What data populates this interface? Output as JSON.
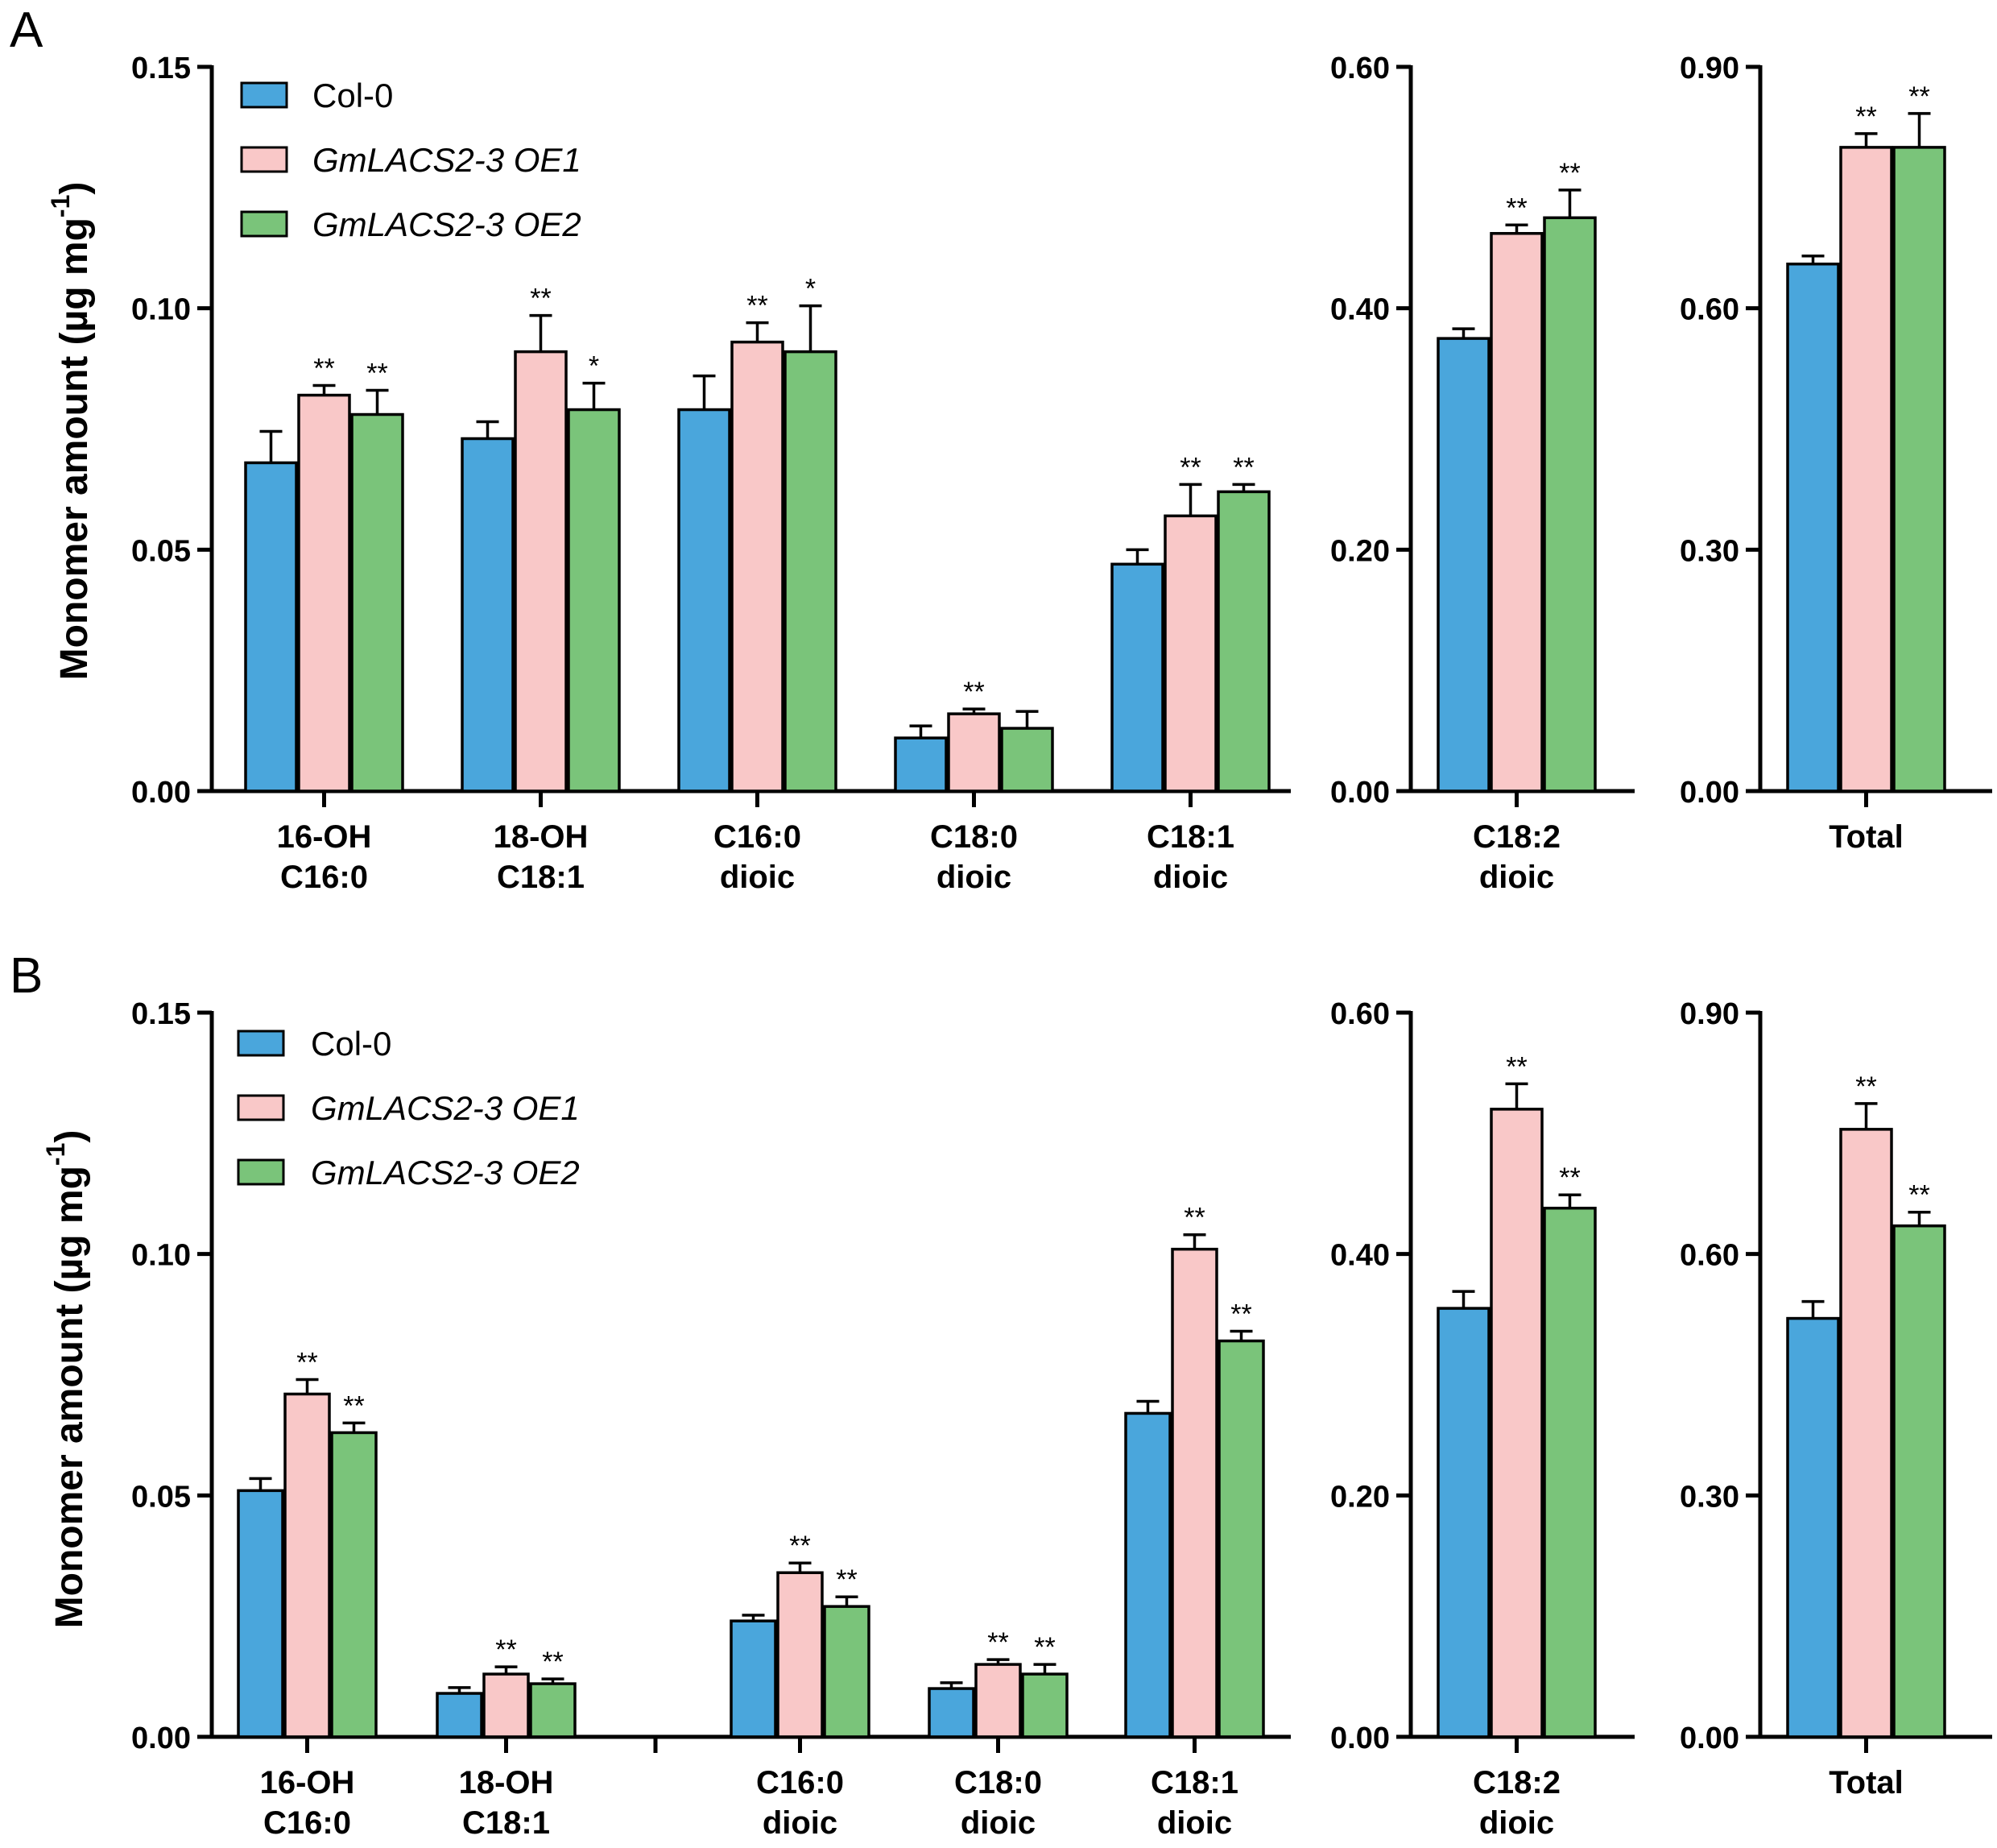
{
  "colors": {
    "col0": "#4aa6dc",
    "oe1": "#f9c8c8",
    "oe2": "#7ac47a",
    "axis": "#000000"
  },
  "chart_data": [
    {
      "panel": "A",
      "type": "bar",
      "ylabel": "Monomer amount (µg mg",
      "ylabel_sup": "-1",
      "ylabel_close": ")",
      "legend": [
        {
          "label": "Col-0",
          "italic": false
        },
        {
          "label": "GmLACS2-3 OE1",
          "italic": true
        },
        {
          "label": "GmLACS2-3 OE2",
          "italic": true
        }
      ],
      "subplots": [
        {
          "ylim": [
            0,
            0.15
          ],
          "ticks": [
            "0.00",
            "0.05",
            "0.10",
            "0.15"
          ],
          "categories": [
            [
              "16-OH",
              "C16:0"
            ],
            [
              "18-OH",
              "C18:1"
            ],
            [
              "C16:0",
              "dioic"
            ],
            [
              "C18:0",
              "dioic"
            ],
            [
              "C18:1",
              "dioic"
            ]
          ],
          "series": [
            {
              "name": "Col-0",
              "values": [
                0.068,
                0.073,
                0.079,
                0.011,
                0.047
              ],
              "errors": [
                0.0065,
                0.0035,
                0.007,
                0.0025,
                0.003
              ],
              "sig": [
                "",
                "",
                "",
                "",
                ""
              ]
            },
            {
              "name": "GmLACS2-3 OE1",
              "values": [
                0.082,
                0.091,
                0.093,
                0.016,
                0.057
              ],
              "errors": [
                0.002,
                0.0075,
                0.004,
                0.001,
                0.0065
              ],
              "sig": [
                "**",
                "**",
                "**",
                "**",
                "**"
              ]
            },
            {
              "name": "GmLACS2-3 OE2",
              "values": [
                0.078,
                0.079,
                0.091,
                0.013,
                0.062
              ],
              "errors": [
                0.005,
                0.0055,
                0.0095,
                0.0035,
                0.0015
              ],
              "sig": [
                "**",
                "*",
                "*",
                "",
                "**"
              ]
            }
          ]
        },
        {
          "ylim": [
            0,
            0.6
          ],
          "ticks": [
            "0.00",
            "0.20",
            "0.40",
            "0.60"
          ],
          "categories": [
            [
              "C18:2",
              "dioic"
            ]
          ],
          "series": [
            {
              "name": "Col-0",
              "values": [
                0.375
              ],
              "errors": [
                0.008
              ],
              "sig": [
                ""
              ]
            },
            {
              "name": "GmLACS2-3 OE1",
              "values": [
                0.462
              ],
              "errors": [
                0.007
              ],
              "sig": [
                "**"
              ]
            },
            {
              "name": "GmLACS2-3 OE2",
              "values": [
                0.475
              ],
              "errors": [
                0.023
              ],
              "sig": [
                "**"
              ]
            }
          ]
        },
        {
          "ylim": [
            0,
            0.9
          ],
          "ticks": [
            "0.00",
            "0.30",
            "0.60",
            "0.90"
          ],
          "categories": [
            [
              "Total"
            ]
          ],
          "series": [
            {
              "name": "Col-0",
              "values": [
                0.655
              ],
              "errors": [
                0.01
              ],
              "sig": [
                ""
              ]
            },
            {
              "name": "GmLACS2-3 OE1",
              "values": [
                0.8
              ],
              "errors": [
                0.017
              ],
              "sig": [
                "**"
              ]
            },
            {
              "name": "GmLACS2-3 OE2",
              "values": [
                0.8
              ],
              "errors": [
                0.042
              ],
              "sig": [
                "**"
              ]
            }
          ]
        }
      ]
    },
    {
      "panel": "B",
      "type": "bar",
      "ylabel": "Monomer amount (µg mg",
      "ylabel_sup": "-1",
      "ylabel_close": ")",
      "legend": [
        {
          "label": "Col-0",
          "italic": false
        },
        {
          "label": "GmLACS2-3 OE1",
          "italic": true
        },
        {
          "label": "GmLACS2-3 OE2",
          "italic": true
        }
      ],
      "subplots": [
        {
          "ylim": [
            0,
            0.15
          ],
          "ticks": [
            "0.00",
            "0.05",
            "0.10",
            "0.15"
          ],
          "categories": [
            [
              "16-OH",
              "C16:0"
            ],
            [
              "18-OH",
              "C18:1"
            ],
            [
              "C16:0",
              "dioic"
            ],
            [
              "C18:0",
              "dioic"
            ],
            [
              "C18:1",
              "dioic"
            ]
          ],
          "series": [
            {
              "name": "Col-0",
              "values": [
                0.051,
                0.009,
                0.024,
                0.01,
                0.067
              ],
              "errors": [
                0.0025,
                0.0012,
                0.0012,
                0.0012,
                0.0025
              ],
              "sig": [
                "",
                "",
                "",
                "",
                ""
              ]
            },
            {
              "name": "GmLACS2-3 OE1",
              "values": [
                0.071,
                0.013,
                0.034,
                0.015,
                0.101
              ],
              "errors": [
                0.003,
                0.0015,
                0.002,
                0.001,
                0.003
              ],
              "sig": [
                "**",
                "**",
                "**",
                "**",
                "**"
              ]
            },
            {
              "name": "GmLACS2-3 OE2",
              "values": [
                0.063,
                0.011,
                0.027,
                0.013,
                0.082
              ],
              "errors": [
                0.002,
                0.001,
                0.002,
                0.002,
                0.002
              ],
              "sig": [
                "**",
                "**",
                "**",
                "**",
                "**"
              ]
            }
          ]
        },
        {
          "ylim": [
            0,
            0.6
          ],
          "ticks": [
            "0.00",
            "0.20",
            "0.40",
            "0.60"
          ],
          "categories": [
            [
              "C18:2",
              "dioic"
            ]
          ],
          "series": [
            {
              "name": "Col-0",
              "values": [
                0.355
              ],
              "errors": [
                0.014
              ],
              "sig": [
                ""
              ]
            },
            {
              "name": "GmLACS2-3 OE1",
              "values": [
                0.52
              ],
              "errors": [
                0.021
              ],
              "sig": [
                "**"
              ]
            },
            {
              "name": "GmLACS2-3 OE2",
              "values": [
                0.438
              ],
              "errors": [
                0.011
              ],
              "sig": [
                "**"
              ]
            }
          ]
        },
        {
          "ylim": [
            0,
            0.9
          ],
          "ticks": [
            "0.00",
            "0.30",
            "0.60",
            "0.90"
          ],
          "categories": [
            [
              "Total"
            ]
          ],
          "series": [
            {
              "name": "Col-0",
              "values": [
                0.52
              ],
              "errors": [
                0.021
              ],
              "sig": [
                ""
              ]
            },
            {
              "name": "GmLACS2-3 OE1",
              "values": [
                0.755
              ],
              "errors": [
                0.032
              ],
              "sig": [
                "**"
              ]
            },
            {
              "name": "GmLACS2-3 OE2",
              "values": [
                0.635
              ],
              "errors": [
                0.017
              ],
              "sig": [
                "**"
              ]
            }
          ]
        }
      ]
    }
  ]
}
